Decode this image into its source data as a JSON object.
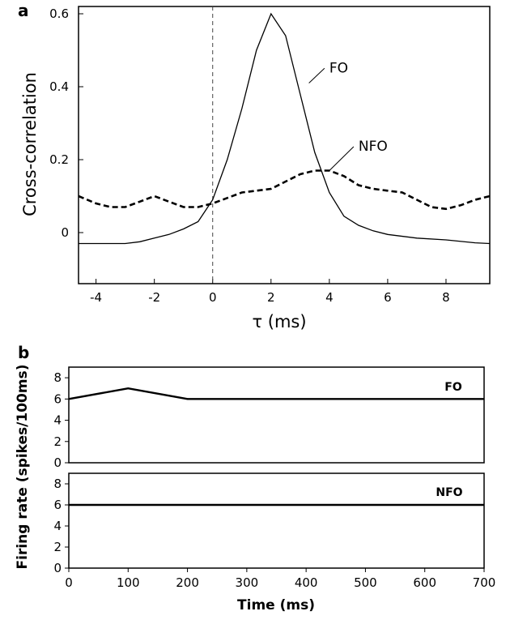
{
  "figure": {
    "panel_a_letter": "a",
    "panel_b_letter": "b"
  },
  "chart_data": [
    {
      "id": "panel_a",
      "type": "line",
      "title": "",
      "xlabel": "τ (ms)",
      "ylabel": "Cross-correlation",
      "xlim": [
        -4.6,
        9.5
      ],
      "ylim": [
        -0.14,
        0.62
      ],
      "xticks": [
        -4,
        -2,
        0,
        2,
        4,
        6,
        8
      ],
      "xtick_labels": [
        "-4",
        "-2",
        "0",
        "2",
        "4",
        "6",
        "8"
      ],
      "yticks": [
        0,
        0.2,
        0.4,
        0.6
      ],
      "ytick_labels": [
        "0",
        "0.2",
        "0.4",
        "0.6"
      ],
      "grid": false,
      "reference_line": {
        "x": 0,
        "style": "dashed"
      },
      "series": [
        {
          "name": "FO",
          "style": "solid",
          "label_anchor": [
            3.3,
            0.41
          ],
          "label_pos": [
            4.0,
            0.455
          ],
          "x": [
            -4.6,
            -3.0,
            -2.5,
            -2.0,
            -1.5,
            -1.0,
            -0.5,
            0.0,
            0.5,
            1.0,
            1.5,
            2.0,
            2.5,
            3.0,
            3.5,
            4.0,
            4.5,
            5.0,
            5.5,
            6.0,
            7.0,
            8.0,
            9.0,
            9.5
          ],
          "y": [
            -0.03,
            -0.03,
            -0.025,
            -0.015,
            -0.005,
            0.01,
            0.03,
            0.09,
            0.2,
            0.34,
            0.5,
            0.6,
            0.54,
            0.38,
            0.22,
            0.11,
            0.045,
            0.02,
            0.005,
            -0.005,
            -0.015,
            -0.02,
            -0.028,
            -0.03
          ]
        },
        {
          "name": "NFO",
          "style": "dashed",
          "label_anchor": [
            4.0,
            0.17
          ],
          "label_pos": [
            5.0,
            0.24
          ],
          "x": [
            -4.6,
            -4.0,
            -3.5,
            -3.0,
            -2.5,
            -2.0,
            -1.5,
            -1.0,
            -0.5,
            0.0,
            0.5,
            1.0,
            1.5,
            2.0,
            2.5,
            3.0,
            3.5,
            4.0,
            4.5,
            5.0,
            5.5,
            6.0,
            6.5,
            7.0,
            7.5,
            8.0,
            8.5,
            9.0,
            9.5
          ],
          "y": [
            0.1,
            0.08,
            0.07,
            0.07,
            0.085,
            0.1,
            0.085,
            0.07,
            0.07,
            0.08,
            0.095,
            0.11,
            0.115,
            0.12,
            0.14,
            0.16,
            0.17,
            0.17,
            0.155,
            0.13,
            0.12,
            0.115,
            0.11,
            0.09,
            0.07,
            0.065,
            0.075,
            0.09,
            0.1
          ]
        }
      ]
    },
    {
      "id": "panel_b",
      "type": "line",
      "title": "",
      "xlabel": "Time (ms)",
      "ylabel": "Firing rate (spikes/100ms)",
      "xlim": [
        0,
        700
      ],
      "xticks": [
        0,
        100,
        200,
        300,
        400,
        500,
        600,
        700
      ],
      "xtick_labels": [
        "0",
        "100",
        "200",
        "300",
        "400",
        "500",
        "600",
        "700"
      ],
      "subplots": [
        {
          "name": "FO",
          "ylim": [
            0,
            9
          ],
          "yticks": [
            0,
            2,
            4,
            6,
            8
          ],
          "ytick_labels": [
            "0",
            "2",
            "4",
            "6",
            "8"
          ],
          "x": [
            0,
            100,
            200,
            700
          ],
          "y": [
            6,
            7,
            6,
            6
          ]
        },
        {
          "name": "NFO",
          "ylim": [
            0,
            9
          ],
          "yticks": [
            0,
            2,
            4,
            6,
            8
          ],
          "ytick_labels": [
            "0",
            "2",
            "4",
            "6",
            "8"
          ],
          "x": [
            0,
            700
          ],
          "y": [
            6,
            6
          ]
        }
      ]
    }
  ]
}
